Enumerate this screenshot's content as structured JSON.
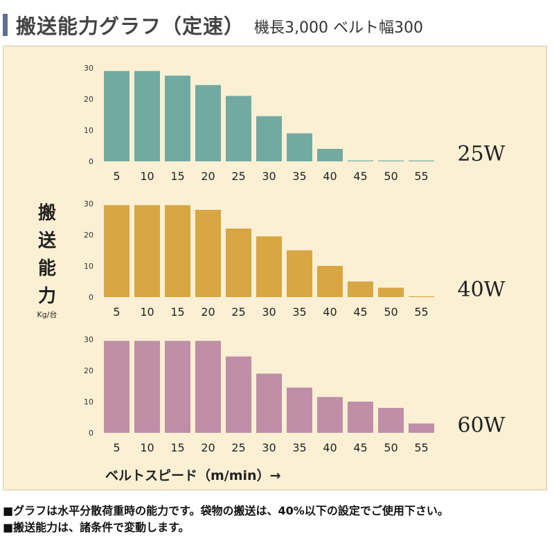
{
  "title": {
    "main": "搬送能力グラフ（定速）",
    "sub": "機長3,000 ベルト幅300"
  },
  "ylabel": {
    "chars": [
      "搬",
      "送",
      "能",
      "力"
    ],
    "unit": "Kg/台"
  },
  "xlabel": "ベルトスピード（m/min）→",
  "footnotes": [
    "■グラフは水平分散荷重時の能力です。袋物の搬送は、40%以下の設定でご使用下さい。",
    "■搬送能力は、諸条件で変動します。"
  ],
  "colors": {
    "panel_bg": "#fbf0d4",
    "title_accent": "#5f6f8c"
  },
  "chart_data": [
    {
      "type": "bar",
      "label": "25W",
      "color": "#72aaa2",
      "categories": [
        "5",
        "10",
        "15",
        "20",
        "25",
        "30",
        "35",
        "40",
        "45",
        "50",
        "55"
      ],
      "values": [
        29,
        29,
        27.5,
        24.5,
        21,
        14.5,
        9,
        4,
        0.2,
        0.2,
        0.2
      ],
      "yticks": [
        "0",
        "10",
        "20",
        "30"
      ],
      "ylim": [
        0,
        30
      ]
    },
    {
      "type": "bar",
      "label": "40W",
      "color": "#d8a642",
      "categories": [
        "5",
        "10",
        "15",
        "20",
        "25",
        "30",
        "35",
        "40",
        "45",
        "50",
        "55"
      ],
      "values": [
        29.5,
        29.5,
        29.5,
        28,
        22,
        19.5,
        15,
        10,
        5,
        3,
        0.2
      ],
      "yticks": [
        "0",
        "10",
        "20",
        "30"
      ],
      "ylim": [
        0,
        30
      ]
    },
    {
      "type": "bar",
      "label": "60W",
      "color": "#bf8ea7",
      "categories": [
        "5",
        "10",
        "15",
        "20",
        "25",
        "30",
        "35",
        "40",
        "45",
        "50",
        "55"
      ],
      "values": [
        29.5,
        29.5,
        29.5,
        29.5,
        24.5,
        19,
        14.5,
        11.5,
        10,
        8,
        3
      ],
      "yticks": [
        "0",
        "10",
        "20",
        "30"
      ],
      "ylim": [
        0,
        30
      ]
    }
  ]
}
